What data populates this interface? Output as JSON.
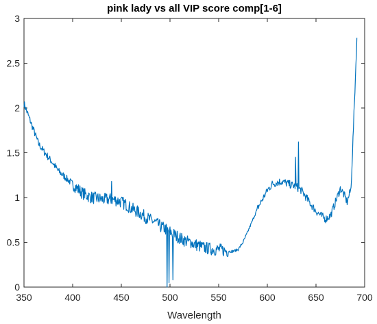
{
  "chart_data": {
    "type": "line",
    "title": "pink lady vs all VIP score comp[1-6]",
    "xlabel": "Wavelength",
    "ylabel": "",
    "xlim": [
      350,
      700
    ],
    "ylim": [
      0,
      3
    ],
    "xticks": [
      "350",
      "400",
      "450",
      "500",
      "550",
      "600",
      "650",
      "700"
    ],
    "yticks": [
      "0",
      "0.5",
      "1",
      "1.5",
      "2",
      "2.5",
      "3"
    ],
    "grid": false,
    "legend": "none",
    "line_color": "#0072BD",
    "series": [
      {
        "name": "",
        "x": [
          350,
          355,
          360,
          365,
          370,
          375,
          380,
          385,
          390,
          395,
          400,
          405,
          410,
          415,
          420,
          425,
          430,
          435,
          440,
          445,
          450,
          455,
          460,
          465,
          470,
          475,
          480,
          485,
          490,
          495,
          500,
          505,
          510,
          515,
          520,
          525,
          530,
          535,
          540,
          545,
          550,
          555,
          560,
          565,
          570,
          575,
          580,
          585,
          590,
          595,
          600,
          605,
          610,
          615,
          620,
          625,
          630,
          635,
          640,
          645,
          650,
          655,
          660,
          665,
          670,
          675,
          678,
          682,
          686,
          690,
          692
        ],
        "y": [
          2.05,
          1.9,
          1.75,
          1.6,
          1.52,
          1.45,
          1.38,
          1.3,
          1.25,
          1.2,
          1.15,
          1.1,
          1.05,
          1.02,
          1.0,
          0.99,
          0.98,
          0.98,
          0.98,
          0.97,
          0.95,
          0.92,
          0.88,
          0.85,
          0.82,
          0.78,
          0.75,
          0.72,
          0.68,
          0.65,
          0.62,
          0.58,
          0.55,
          0.52,
          0.5,
          0.48,
          0.46,
          0.44,
          0.43,
          0.42,
          0.42,
          0.41,
          0.4,
          0.4,
          0.42,
          0.5,
          0.62,
          0.75,
          0.88,
          0.98,
          1.08,
          1.15,
          1.17,
          1.18,
          1.16,
          1.14,
          1.12,
          1.08,
          1.0,
          0.92,
          0.85,
          0.8,
          0.76,
          0.8,
          0.95,
          1.1,
          1.05,
          0.95,
          1.1,
          2.2,
          2.78
        ]
      }
    ]
  }
}
